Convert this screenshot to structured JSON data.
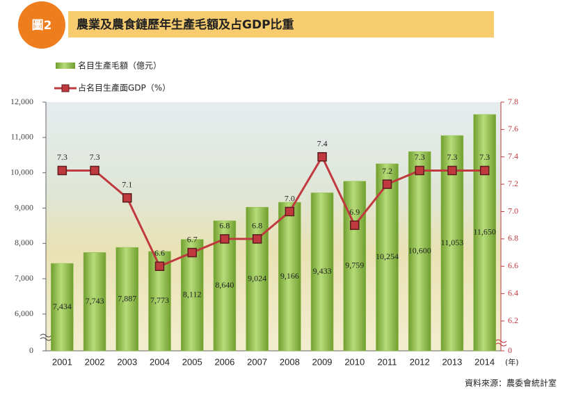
{
  "header": {
    "badge": "圖2",
    "title": "農業及農食鏈歷年生產毛額及占GDP比重"
  },
  "chart_data": {
    "type": "bar-line",
    "categories": [
      "2001",
      "2002",
      "2003",
      "2004",
      "2005",
      "2006",
      "2007",
      "2008",
      "2009",
      "2010",
      "2011",
      "2012",
      "2013",
      "2014"
    ],
    "x_unit": "(年)",
    "series": [
      {
        "name": "名目生產毛額（億元）",
        "type": "bar",
        "color": "#8fbf4a",
        "values": [
          7434,
          7743,
          7887,
          7773,
          8112,
          8640,
          9024,
          9166,
          9433,
          9759,
          10254,
          10600,
          11053,
          11650
        ],
        "value_labels": [
          "7,434",
          "7,743",
          "7,887",
          "7,773",
          "8,112",
          "8,640",
          "9,024",
          "9,166",
          "9,433",
          "9,759",
          "10,254",
          "10,600",
          "11,053",
          "11,650"
        ]
      },
      {
        "name": "占名目生產面GDP（%）",
        "type": "line",
        "axis": "y2",
        "color": "#c0393f",
        "values": [
          7.3,
          7.3,
          7.1,
          6.6,
          6.7,
          6.8,
          6.8,
          7.0,
          7.4,
          6.9,
          7.2,
          7.3,
          7.3,
          7.3
        ],
        "value_labels": [
          "7.3",
          "7.3",
          "7.1",
          "6.6",
          "6.7",
          "6.8",
          "6.8",
          "7.0",
          "7.4",
          "6.9",
          "7.2",
          "7.3",
          "7.3",
          "7.3"
        ]
      }
    ],
    "ylim": [
      0,
      12000
    ],
    "yticks": [
      0,
      {
        "value": 6000,
        "label": "6,000"
      },
      {
        "value": 7000,
        "label": "7,000"
      },
      {
        "value": 8000,
        "label": "8,000"
      },
      {
        "value": 9000,
        "label": "9,000"
      },
      {
        "value": 10000,
        "label": "10,000"
      },
      {
        "value": 11000,
        "label": "11,000"
      },
      {
        "value": 12000,
        "label": "12,000"
      }
    ],
    "y2lim": [
      0,
      7.8
    ],
    "y2ticks": [
      0,
      6.2,
      6.4,
      6.6,
      6.8,
      {
        "value": 7.0,
        "label": "7.0"
      },
      7.2,
      7.4,
      7.6,
      7.8
    ],
    "axis_break": true,
    "source": "資料來源：農委會統計室"
  }
}
